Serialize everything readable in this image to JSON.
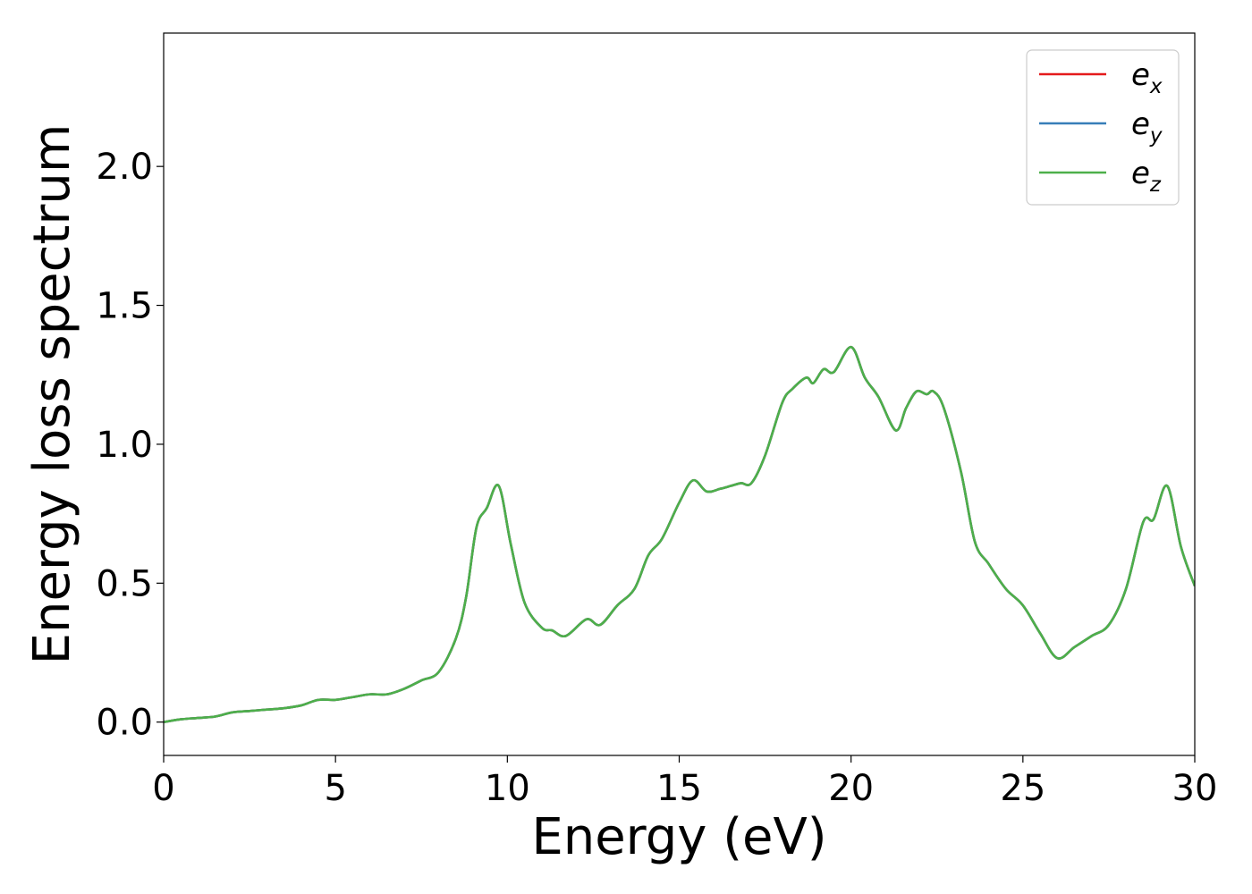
{
  "chart_data": {
    "type": "line",
    "title": "",
    "xlabel": "Energy (eV)",
    "ylabel": "Energy loss spectrum",
    "xlim": [
      0,
      30
    ],
    "ylim": [
      -0.12,
      2.48
    ],
    "xticks": [
      0,
      5,
      10,
      15,
      20,
      25,
      30
    ],
    "xtick_labels": [
      "0",
      "5",
      "10",
      "15",
      "20",
      "25",
      "30"
    ],
    "yticks": [
      0.0,
      0.5,
      1.0,
      1.5,
      2.0
    ],
    "ytick_labels": [
      "0.0",
      "0.5",
      "1.0",
      "1.5",
      "2.0"
    ],
    "grid": false,
    "legend_position": "top-right",
    "series": [
      {
        "name": "e",
        "subscript": "x",
        "color": "#e41a1c"
      },
      {
        "name": "e",
        "subscript": "y",
        "color": "#377eb8"
      },
      {
        "name": "e",
        "subscript": "z",
        "color": "#4daf4a"
      }
    ],
    "x": [
      0,
      0.5,
      1,
      1.5,
      2,
      2.5,
      3,
      3.5,
      4,
      4.5,
      5,
      5.5,
      6,
      6.5,
      7,
      7.5,
      8,
      8.5,
      8.8,
      9.1,
      9.4,
      9.75,
      10.1,
      10.5,
      11,
      11.3,
      11.7,
      12.3,
      12.7,
      13.2,
      13.7,
      14.1,
      14.5,
      15,
      15.4,
      15.8,
      16.2,
      16.5,
      16.8,
      17.1,
      17.5,
      18,
      18.3,
      18.7,
      18.9,
      19.2,
      19.5,
      20,
      20.4,
      20.8,
      21.3,
      21.6,
      21.9,
      22.2,
      22.4,
      22.7,
      23.2,
      23.6,
      24,
      24.5,
      25,
      25.5,
      26,
      26.5,
      27,
      27.5,
      28,
      28.5,
      28.8,
      29.2,
      29.6,
      30
    ],
    "values": [
      0.0,
      0.01,
      0.015,
      0.02,
      0.035,
      0.04,
      0.045,
      0.05,
      0.06,
      0.08,
      0.08,
      0.09,
      0.1,
      0.1,
      0.12,
      0.15,
      0.18,
      0.3,
      0.45,
      0.7,
      0.77,
      0.85,
      0.64,
      0.43,
      0.34,
      0.33,
      0.31,
      0.37,
      0.35,
      0.42,
      0.48,
      0.6,
      0.66,
      0.79,
      0.87,
      0.83,
      0.84,
      0.85,
      0.86,
      0.86,
      0.96,
      1.15,
      1.2,
      1.24,
      1.22,
      1.27,
      1.26,
      1.35,
      1.24,
      1.17,
      1.05,
      1.13,
      1.19,
      1.18,
      1.19,
      1.13,
      0.9,
      0.65,
      0.57,
      0.48,
      0.42,
      0.32,
      0.23,
      0.27,
      0.31,
      0.35,
      0.48,
      0.72,
      0.73,
      0.85,
      0.63,
      0.49
    ]
  }
}
